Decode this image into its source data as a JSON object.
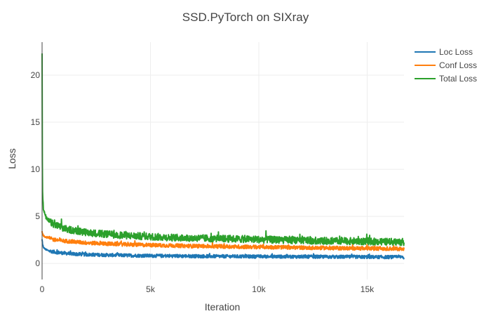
{
  "chart_data": {
    "type": "line",
    "title": "SSD.PyTorch on SIXray",
    "xlabel": "Iteration",
    "ylabel": "Loss",
    "xlim": [
      0,
      16700
    ],
    "ylim": [
      -1.7,
      23.5
    ],
    "x_ticks": [
      {
        "value": 0,
        "label": "0"
      },
      {
        "value": 5000,
        "label": "5k"
      },
      {
        "value": 10000,
        "label": "10k"
      },
      {
        "value": 15000,
        "label": "15k"
      }
    ],
    "y_ticks": [
      {
        "value": 0,
        "label": "0"
      },
      {
        "value": 5,
        "label": "5"
      },
      {
        "value": 10,
        "label": "10"
      },
      {
        "value": 15,
        "label": "15"
      },
      {
        "value": 20,
        "label": "20"
      }
    ],
    "grid": true,
    "legend_position": "top-right",
    "series": [
      {
        "name": "Loc Loss",
        "color": "#1f77b4",
        "x": [
          0,
          20,
          50,
          100,
          200,
          300,
          500,
          800,
          1000,
          1500,
          2000,
          3000,
          4000,
          5000,
          6000,
          7000,
          8000,
          9000,
          10000,
          11000,
          12000,
          13000,
          14000,
          15000,
          16000,
          16700
        ],
        "y": [
          2.5,
          2.0,
          1.8,
          1.6,
          1.45,
          1.35,
          1.25,
          1.15,
          1.1,
          1.0,
          0.95,
          0.9,
          0.85,
          0.82,
          0.8,
          0.78,
          0.76,
          0.75,
          0.74,
          0.73,
          0.72,
          0.71,
          0.7,
          0.69,
          0.68,
          0.67
        ],
        "noise": 0.35
      },
      {
        "name": "Conf Loss",
        "color": "#ff7f0e",
        "x": [
          0,
          20,
          50,
          100,
          200,
          300,
          500,
          800,
          1000,
          1500,
          2000,
          3000,
          4000,
          5000,
          6000,
          7000,
          8000,
          9000,
          10000,
          11000,
          12000,
          13000,
          14000,
          15000,
          16000,
          16700
        ],
        "y": [
          3.3,
          3.1,
          3.0,
          2.9,
          2.8,
          2.7,
          2.55,
          2.45,
          2.4,
          2.3,
          2.2,
          2.1,
          2.0,
          1.95,
          1.9,
          1.85,
          1.82,
          1.78,
          1.75,
          1.72,
          1.68,
          1.65,
          1.62,
          1.6,
          1.58,
          1.56
        ],
        "noise": 0.4
      },
      {
        "name": "Total Loss",
        "color": "#2ca02c",
        "x": [
          0,
          5,
          15,
          30,
          60,
          100,
          200,
          300,
          500,
          800,
          1000,
          1500,
          2000,
          3000,
          4000,
          5000,
          6000,
          7000,
          8000,
          9000,
          10000,
          11000,
          12000,
          13000,
          14000,
          15000,
          16000,
          16700
        ],
        "y": [
          22.3,
          15,
          9,
          7,
          5.8,
          5.4,
          4.8,
          4.5,
          4.2,
          3.9,
          3.7,
          3.5,
          3.3,
          3.1,
          2.95,
          2.85,
          2.75,
          2.7,
          2.65,
          2.6,
          2.55,
          2.5,
          2.45,
          2.4,
          2.38,
          2.35,
          2.3,
          2.28
        ],
        "noise": 0.75
      }
    ]
  }
}
